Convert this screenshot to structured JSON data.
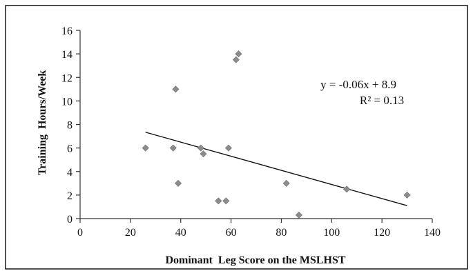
{
  "chart_data": {
    "type": "scatter",
    "title": "",
    "xlabel": "Dominant  Leg Score on the MSLHST",
    "ylabel": "Training  Hours/Week",
    "xlim": [
      0,
      140
    ],
    "ylim": [
      0,
      16
    ],
    "x_ticks": [
      0,
      20,
      40,
      60,
      80,
      100,
      120,
      140
    ],
    "y_ticks": [
      0,
      2,
      4,
      6,
      8,
      10,
      12,
      14,
      16
    ],
    "grid": false,
    "legend": "none",
    "marker": "diamond",
    "colors": {
      "point_fill": "#8c8c8c",
      "trendline": "#111111",
      "frame": "#222222"
    },
    "series": [
      {
        "x": [
          26,
          37,
          38,
          39,
          48,
          49,
          55,
          58,
          59,
          62,
          63,
          82,
          87,
          106,
          130
        ],
        "y": [
          6,
          6,
          11,
          3,
          6,
          5.5,
          1.5,
          1.5,
          6,
          13.5,
          14,
          3,
          0.3,
          2.5,
          2
        ]
      }
    ],
    "trendline": {
      "slope": -0.06,
      "intercept": 8.9,
      "x_range": [
        26,
        130
      ]
    },
    "annotations": [
      "y = -0.06x + 8.9",
      "R² = 0.13"
    ]
  }
}
